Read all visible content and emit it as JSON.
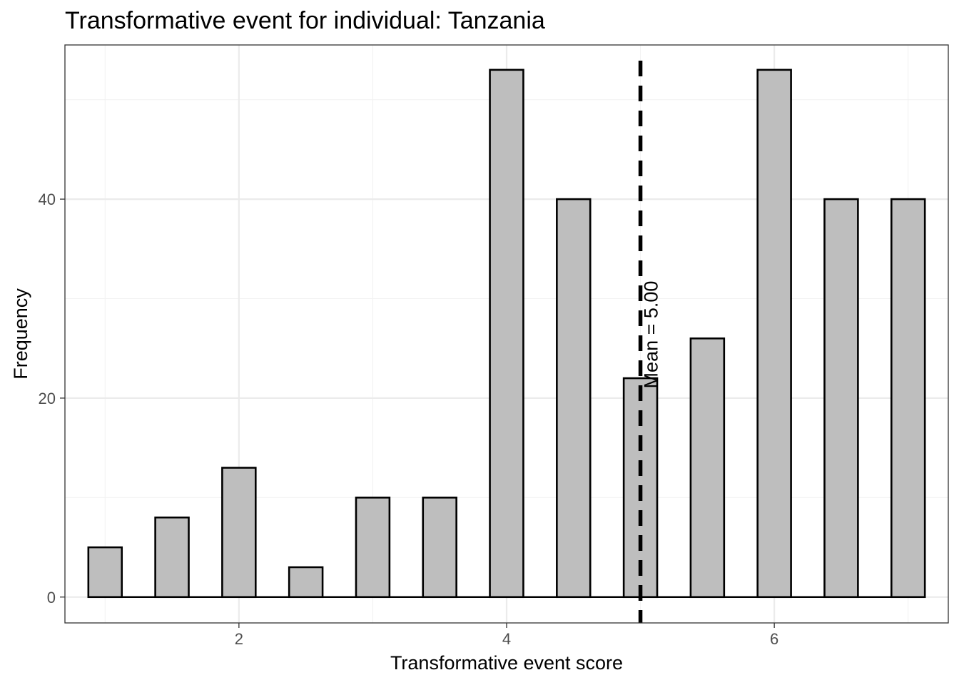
{
  "chart_data": {
    "type": "bar",
    "title": "Transformative event for individual: Tanzania",
    "xlabel": "Transformative event score",
    "ylabel": "Frequency",
    "x": [
      1,
      1.5,
      2,
      2.5,
      3,
      3.5,
      4,
      4.5,
      5,
      5.5,
      6,
      6.5,
      7
    ],
    "values": [
      5,
      8,
      13,
      3,
      10,
      10,
      53,
      40,
      22,
      26,
      53,
      40,
      40
    ],
    "xlim": [
      0.7,
      7.3
    ],
    "ylim": [
      -2.6,
      55.5
    ],
    "x_ticks": [
      2,
      4,
      6
    ],
    "y_ticks": [
      0,
      20,
      40
    ],
    "grid": true,
    "bar_fill": "#bebebe",
    "bar_stroke": "#000000",
    "mean": {
      "value": 5.0,
      "label": "Mean = 5.00",
      "line_style": "dashed"
    }
  }
}
